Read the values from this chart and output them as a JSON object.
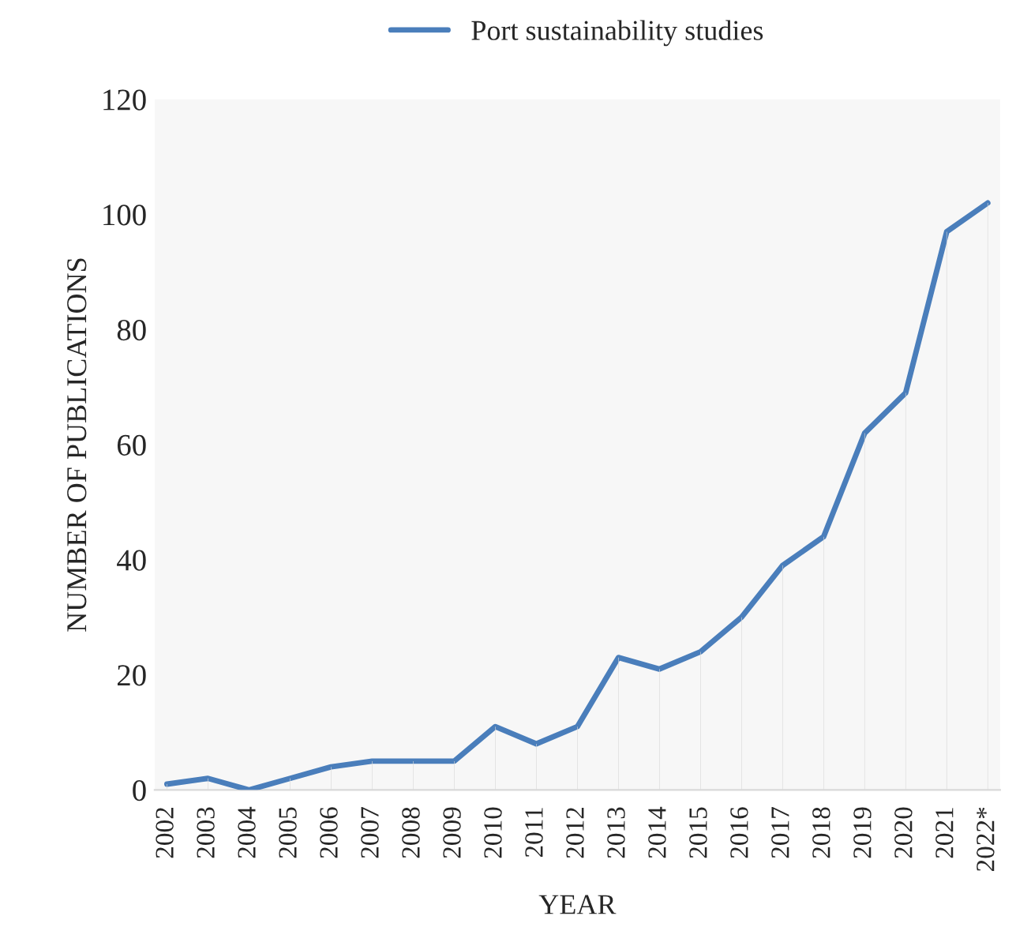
{
  "chart_data": {
    "type": "line",
    "categories": [
      "2002",
      "2003",
      "2004",
      "2005",
      "2006",
      "2007",
      "2008",
      "2009",
      "2010",
      "2011",
      "2012",
      "2013",
      "2014",
      "2015",
      "2016",
      "2017",
      "2018",
      "2019",
      "2020",
      "2021",
      "2022*"
    ],
    "series": [
      {
        "type": "bar",
        "color": "#d9d9d9",
        "values": [
          1,
          2,
          0,
          2,
          4,
          5,
          5,
          5,
          11,
          8,
          11,
          23,
          21,
          24,
          30,
          39,
          44,
          62,
          69,
          97,
          102
        ]
      },
      {
        "name": "Port sustainability studies",
        "color": "#4a7ebb",
        "values": [
          1,
          2,
          0,
          2,
          4,
          5,
          5,
          5,
          11,
          8,
          11,
          23,
          21,
          24,
          30,
          39,
          44,
          62,
          69,
          97,
          102
        ]
      }
    ],
    "xlabel": "YEAR",
    "ylabel": "NUMBER OF PUBLICATIONS",
    "ylim": [
      0,
      120
    ],
    "yticks": [
      0,
      20,
      40,
      60,
      80,
      100,
      120
    ],
    "grid": false,
    "legend": "top",
    "marker": "none",
    "line_style": "solid"
  }
}
